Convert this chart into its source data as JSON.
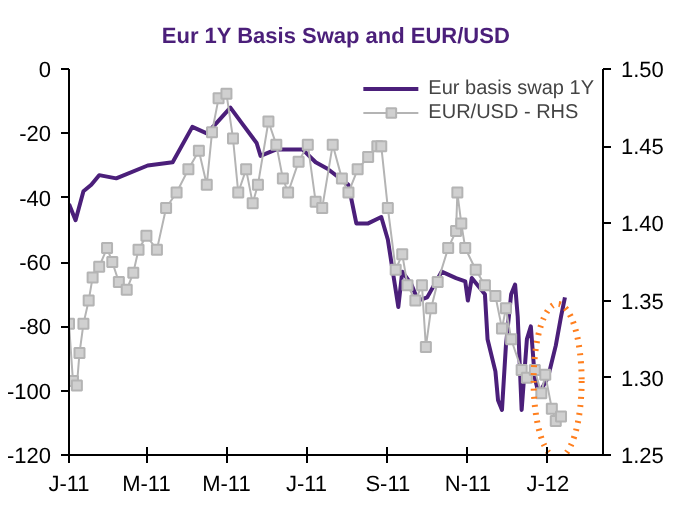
{
  "chart_data": {
    "type": "line",
    "title": "Eur 1Y Basis Swap and EUR/USD",
    "xlim": [
      "2011-01-01",
      "2012-02-12"
    ],
    "xticks": [
      {
        "value": "2011-01-01",
        "label": "J-11"
      },
      {
        "value": "2011-03-01",
        "label": "M-11"
      },
      {
        "value": "2011-05-01",
        "label": "M-11"
      },
      {
        "value": "2011-07-01",
        "label": "J-11"
      },
      {
        "value": "2011-09-01",
        "label": "S-11"
      },
      {
        "value": "2011-11-01",
        "label": "N-11"
      },
      {
        "value": "2012-01-01",
        "label": "J-12"
      }
    ],
    "ylim": [
      -120,
      0
    ],
    "yticks": [
      -120,
      -100,
      -80,
      -60,
      -40,
      -20,
      0
    ],
    "y2lim": [
      1.25,
      1.5
    ],
    "y2ticks": [
      {
        "value": 1.25,
        "label": "1.25"
      },
      {
        "value": 1.3,
        "label": "1.30"
      },
      {
        "value": 1.35,
        "label": "1.35"
      },
      {
        "value": 1.4,
        "label": "1.40"
      },
      {
        "value": 1.45,
        "label": "1.45"
      },
      {
        "value": 1.5,
        "label": "1.50"
      }
    ],
    "grid": false,
    "legend": "top right",
    "line_style": "solid",
    "series": [
      {
        "name": "Eur basis swap 1Y",
        "color": "#4b1f7a",
        "marker": "none",
        "x": [
          "2011-01-01",
          "2011-01-06",
          "2011-01-12",
          "2011-01-18",
          "2011-01-24",
          "2011-02-06",
          "2011-03-02",
          "2011-03-21",
          "2011-04-05",
          "2011-04-16",
          "2011-04-23",
          "2011-05-04",
          "2011-05-13",
          "2011-05-24",
          "2011-05-27",
          "2011-06-08",
          "2011-06-28",
          "2011-07-08",
          "2011-07-17",
          "2011-08-02",
          "2011-08-08",
          "2011-08-17",
          "2011-08-27",
          "2011-09-01",
          "2011-09-09",
          "2011-09-12",
          "2011-09-19",
          "2011-09-24",
          "2011-10-01",
          "2011-10-12",
          "2011-10-23",
          "2011-10-30",
          "2011-11-01",
          "2011-11-04",
          "2011-11-14",
          "2011-11-16",
          "2011-11-22",
          "2011-11-24",
          "2011-11-27",
          "2011-11-30",
          "2011-12-04",
          "2011-12-07",
          "2011-12-09",
          "2011-12-12",
          "2011-12-16",
          "2011-12-19",
          "2011-12-22",
          "2011-12-25",
          "2012-01-01",
          "2012-01-07",
          "2012-01-11",
          "2012-01-14"
        ],
        "values": [
          -42,
          -47,
          -38,
          -36,
          -33,
          -34,
          -30,
          -29,
          -18,
          -20,
          -17,
          -12,
          -17,
          -23,
          -27,
          -25,
          -25,
          -29,
          -31,
          -36,
          -48,
          -48,
          -46,
          -53,
          -74,
          -63,
          -67,
          -72,
          -71,
          -63,
          -65,
          -66,
          -72,
          -65,
          -70,
          -84,
          -94,
          -103,
          -106,
          -86,
          -70,
          -67,
          -77,
          -106,
          -84,
          -80,
          -96,
          -101,
          -96,
          -86,
          -77,
          -71
        ]
      },
      {
        "name": "EUR/USD - RHS",
        "color": "#b4b4b4",
        "marker": "square",
        "axis": "y2",
        "x": [
          "2011-01-01",
          "2011-01-04",
          "2011-01-07",
          "2011-01-09",
          "2011-01-12",
          "2011-01-16",
          "2011-01-19",
          "2011-01-24",
          "2011-01-30",
          "2011-02-03",
          "2011-02-08",
          "2011-02-14",
          "2011-02-19",
          "2011-02-23",
          "2011-03-01",
          "2011-03-09",
          "2011-03-16",
          "2011-03-24",
          "2011-04-02",
          "2011-04-10",
          "2011-04-16",
          "2011-04-20",
          "2011-04-25",
          "2011-05-01",
          "2011-05-06",
          "2011-05-10",
          "2011-05-16",
          "2011-05-21",
          "2011-05-25",
          "2011-06-02",
          "2011-06-08",
          "2011-06-13",
          "2011-06-17",
          "2011-06-25",
          "2011-07-02",
          "2011-07-08",
          "2011-07-13",
          "2011-07-21",
          "2011-07-28",
          "2011-08-02",
          "2011-08-09",
          "2011-08-17",
          "2011-08-24",
          "2011-08-27",
          "2011-09-01",
          "2011-09-07",
          "2011-09-12",
          "2011-09-16",
          "2011-09-22",
          "2011-09-27",
          "2011-09-30",
          "2011-10-04",
          "2011-10-09",
          "2011-10-17",
          "2011-10-23",
          "2011-10-24",
          "2011-10-27",
          "2011-10-30",
          "2011-11-07",
          "2011-11-14",
          "2011-11-22",
          "2011-11-27",
          "2011-11-30",
          "2011-12-04",
          "2011-12-12",
          "2011-12-16",
          "2011-12-22",
          "2011-12-27",
          "2011-12-30",
          "2012-01-04",
          "2012-01-07",
          "2012-01-11"
        ],
        "values": [
          1.335,
          1.298,
          1.295,
          1.316,
          1.335,
          1.35,
          1.365,
          1.372,
          1.384,
          1.375,
          1.362,
          1.357,
          1.368,
          1.383,
          1.392,
          1.383,
          1.41,
          1.42,
          1.435,
          1.447,
          1.425,
          1.459,
          1.481,
          1.484,
          1.455,
          1.42,
          1.435,
          1.413,
          1.425,
          1.466,
          1.451,
          1.429,
          1.42,
          1.44,
          1.451,
          1.414,
          1.41,
          1.451,
          1.429,
          1.42,
          1.435,
          1.443,
          1.45,
          1.45,
          1.41,
          1.37,
          1.38,
          1.36,
          1.35,
          1.36,
          1.32,
          1.345,
          1.362,
          1.384,
          1.395,
          1.42,
          1.4,
          1.384,
          1.37,
          1.36,
          1.353,
          1.332,
          1.345,
          1.325,
          1.305,
          1.3,
          1.305,
          1.29,
          1.302,
          1.28,
          1.272,
          1.275
        ]
      }
    ]
  }
}
